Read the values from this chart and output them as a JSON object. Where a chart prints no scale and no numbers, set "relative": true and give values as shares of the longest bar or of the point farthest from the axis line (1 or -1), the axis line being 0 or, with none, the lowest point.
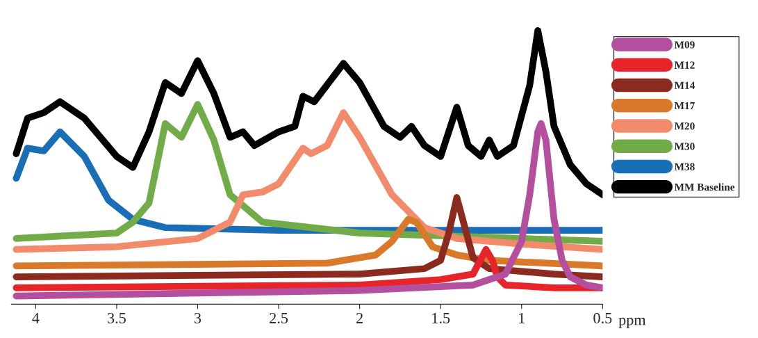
{
  "chart_data": {
    "type": "line",
    "relative": true,
    "xlabel": "ppm",
    "xlim": [
      4.15,
      0.5
    ],
    "xticks": [
      4,
      3.5,
      3,
      2.5,
      2,
      1.5,
      1,
      0.5
    ],
    "legend": "right",
    "grid": false,
    "marker": "none",
    "line_style": "solid",
    "series": [
      {
        "name": "M09",
        "color": "#b44fa0",
        "x": [
          4.12,
          2,
          1.3,
          1.1,
          1.0,
          0.95,
          0.9,
          0.88,
          0.85,
          0.8,
          0.75,
          0.7,
          0.6,
          0.5
        ],
        "values": [
          0.03,
          0.05,
          0.07,
          0.11,
          0.23,
          0.4,
          0.63,
          0.66,
          0.6,
          0.31,
          0.16,
          0.1,
          0.07,
          0.06
        ]
      },
      {
        "name": "M12",
        "color": "#e8242b",
        "x": [
          4.12,
          2,
          1.5,
          1.3,
          1.22,
          1.18,
          1.15,
          1.1,
          0.8,
          0.5
        ],
        "values": [
          0.06,
          0.07,
          0.09,
          0.11,
          0.2,
          0.16,
          0.1,
          0.07,
          0.06,
          0.06
        ]
      },
      {
        "name": "M14",
        "color": "#8b2a1e",
        "x": [
          4.12,
          2,
          1.6,
          1.5,
          1.45,
          1.4,
          1.35,
          1.3,
          1.2,
          0.8,
          0.5
        ],
        "values": [
          0.1,
          0.11,
          0.13,
          0.16,
          0.26,
          0.39,
          0.28,
          0.17,
          0.13,
          0.11,
          0.1
        ]
      },
      {
        "name": "M17",
        "color": "#d97a2a",
        "x": [
          4.12,
          2.2,
          1.9,
          1.8,
          1.7,
          1.65,
          1.55,
          1.4,
          1.2,
          0.5
        ],
        "values": [
          0.14,
          0.15,
          0.18,
          0.23,
          0.31,
          0.3,
          0.21,
          0.18,
          0.16,
          0.14
        ]
      },
      {
        "name": "M20",
        "color": "#f28b6b",
        "x": [
          4.12,
          3.5,
          3.0,
          2.8,
          2.72,
          2.6,
          2.5,
          2.35,
          2.3,
          2.2,
          2.1,
          2.0,
          1.8,
          1.6,
          1.4,
          1.0,
          0.5
        ],
        "values": [
          0.2,
          0.21,
          0.24,
          0.3,
          0.4,
          0.41,
          0.44,
          0.57,
          0.55,
          0.58,
          0.7,
          0.61,
          0.4,
          0.28,
          0.24,
          0.22,
          0.2
        ]
      },
      {
        "name": "M30",
        "color": "#72ac48",
        "x": [
          4.12,
          3.5,
          3.4,
          3.3,
          3.2,
          3.1,
          3.0,
          2.9,
          2.8,
          2.6,
          2.0,
          1.0,
          0.5
        ],
        "values": [
          0.24,
          0.26,
          0.3,
          0.37,
          0.66,
          0.61,
          0.73,
          0.6,
          0.4,
          0.3,
          0.26,
          0.24,
          0.23
        ]
      },
      {
        "name": "M38",
        "color": "#1a6eb5",
        "x": [
          4.12,
          4.05,
          3.95,
          3.85,
          3.7,
          3.55,
          3.4,
          3.2,
          2.5,
          1.5,
          0.5
        ],
        "values": [
          0.46,
          0.57,
          0.56,
          0.63,
          0.54,
          0.38,
          0.31,
          0.28,
          0.27,
          0.27,
          0.27
        ]
      },
      {
        "name": "MM Baseline",
        "color": "#000000",
        "x": [
          4.12,
          4.05,
          3.95,
          3.85,
          3.7,
          3.5,
          3.4,
          3.3,
          3.2,
          3.1,
          3.0,
          2.9,
          2.8,
          2.72,
          2.65,
          2.5,
          2.4,
          2.35,
          2.28,
          2.1,
          2.0,
          1.85,
          1.75,
          1.68,
          1.6,
          1.5,
          1.4,
          1.33,
          1.25,
          1.2,
          1.15,
          1.05,
          0.95,
          0.9,
          0.85,
          0.8,
          0.7,
          0.6,
          0.5
        ],
        "values": [
          0.55,
          0.68,
          0.7,
          0.74,
          0.68,
          0.54,
          0.5,
          0.63,
          0.81,
          0.77,
          0.89,
          0.77,
          0.61,
          0.63,
          0.58,
          0.63,
          0.65,
          0.76,
          0.74,
          0.88,
          0.81,
          0.65,
          0.61,
          0.65,
          0.58,
          0.54,
          0.72,
          0.58,
          0.54,
          0.6,
          0.54,
          0.58,
          0.8,
          1.0,
          0.85,
          0.65,
          0.51,
          0.44,
          0.4
        ]
      }
    ]
  }
}
